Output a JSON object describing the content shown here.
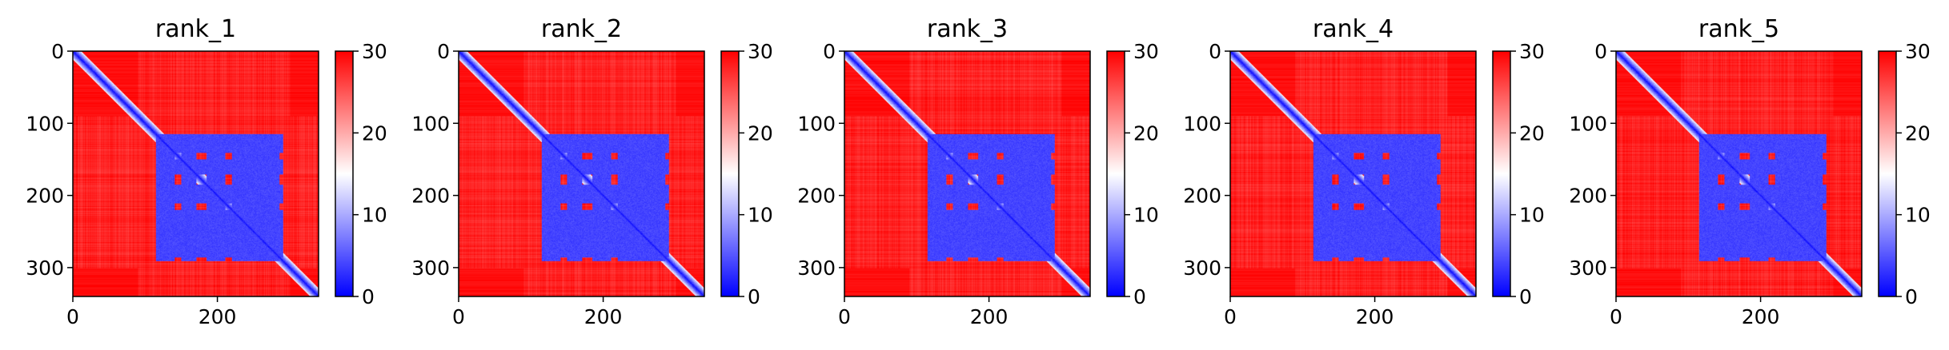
{
  "figure": {
    "colormap": {
      "name": "bwr",
      "low": "#0000ff",
      "mid": "#ffffff",
      "high": "#ff0000"
    }
  },
  "chart_data": [
    {
      "type": "heatmap",
      "title": "rank_1",
      "xlabel": "",
      "ylabel": "",
      "xlim": [
        0,
        340
      ],
      "ylim": [
        340,
        0
      ],
      "x_ticks": [
        0,
        200
      ],
      "y_ticks": [
        0,
        100,
        200,
        300
      ],
      "colorbar": {
        "range": [
          0,
          30
        ],
        "ticks": [
          0,
          10,
          20,
          30
        ]
      },
      "matrix_size": 340,
      "diagonal_value": 0,
      "background_value": 30,
      "domain_blocks": [
        {
          "rows": [
            115,
            140
          ],
          "cols": [
            115,
            290
          ],
          "value": 3
        },
        {
          "rows": [
            150,
            170
          ],
          "cols": [
            115,
            290
          ],
          "value": 3
        },
        {
          "rows": [
            185,
            210
          ],
          "cols": [
            115,
            290
          ],
          "value": 3
        },
        {
          "rows": [
            220,
            285
          ],
          "cols": [
            115,
            290
          ],
          "value": 3
        }
      ]
    },
    {
      "type": "heatmap",
      "title": "rank_2",
      "xlabel": "",
      "ylabel": "",
      "xlim": [
        0,
        340
      ],
      "ylim": [
        340,
        0
      ],
      "x_ticks": [
        0,
        200
      ],
      "y_ticks": [
        0,
        100,
        200,
        300
      ],
      "colorbar": {
        "range": [
          0,
          30
        ],
        "ticks": [
          0,
          10,
          20,
          30
        ]
      },
      "matrix_size": 340,
      "diagonal_value": 0,
      "background_value": 30,
      "domain_blocks": [
        {
          "rows": [
            115,
            140
          ],
          "cols": [
            115,
            290
          ],
          "value": 3
        },
        {
          "rows": [
            150,
            170
          ],
          "cols": [
            115,
            290
          ],
          "value": 3
        },
        {
          "rows": [
            185,
            210
          ],
          "cols": [
            115,
            290
          ],
          "value": 3
        },
        {
          "rows": [
            220,
            285
          ],
          "cols": [
            115,
            290
          ],
          "value": 3
        }
      ]
    },
    {
      "type": "heatmap",
      "title": "rank_3",
      "xlabel": "",
      "ylabel": "",
      "xlim": [
        0,
        340
      ],
      "ylim": [
        340,
        0
      ],
      "x_ticks": [
        0,
        200
      ],
      "y_ticks": [
        0,
        100,
        200,
        300
      ],
      "colorbar": {
        "range": [
          0,
          30
        ],
        "ticks": [
          0,
          10,
          20,
          30
        ]
      },
      "matrix_size": 340,
      "diagonal_value": 0,
      "background_value": 30,
      "domain_blocks": [
        {
          "rows": [
            115,
            140
          ],
          "cols": [
            115,
            290
          ],
          "value": 3
        },
        {
          "rows": [
            150,
            170
          ],
          "cols": [
            115,
            290
          ],
          "value": 3
        },
        {
          "rows": [
            185,
            210
          ],
          "cols": [
            115,
            290
          ],
          "value": 3
        },
        {
          "rows": [
            220,
            285
          ],
          "cols": [
            115,
            290
          ],
          "value": 3
        }
      ]
    },
    {
      "type": "heatmap",
      "title": "rank_4",
      "xlabel": "",
      "ylabel": "",
      "xlim": [
        0,
        340
      ],
      "ylim": [
        340,
        0
      ],
      "x_ticks": [
        0,
        200
      ],
      "y_ticks": [
        0,
        100,
        200,
        300
      ],
      "colorbar": {
        "range": [
          0,
          30
        ],
        "ticks": [
          0,
          10,
          20,
          30
        ]
      },
      "matrix_size": 340,
      "diagonal_value": 0,
      "background_value": 30,
      "domain_blocks": [
        {
          "rows": [
            115,
            140
          ],
          "cols": [
            115,
            290
          ],
          "value": 3
        },
        {
          "rows": [
            150,
            170
          ],
          "cols": [
            115,
            290
          ],
          "value": 3
        },
        {
          "rows": [
            185,
            210
          ],
          "cols": [
            115,
            290
          ],
          "value": 3
        },
        {
          "rows": [
            220,
            285
          ],
          "cols": [
            115,
            290
          ],
          "value": 3
        }
      ]
    },
    {
      "type": "heatmap",
      "title": "rank_5",
      "xlabel": "",
      "ylabel": "",
      "xlim": [
        0,
        340
      ],
      "ylim": [
        340,
        0
      ],
      "x_ticks": [
        0,
        200
      ],
      "y_ticks": [
        0,
        100,
        200,
        300
      ],
      "colorbar": {
        "range": [
          0,
          30
        ],
        "ticks": [
          0,
          10,
          20,
          30
        ]
      },
      "matrix_size": 340,
      "diagonal_value": 0,
      "background_value": 30,
      "domain_blocks": [
        {
          "rows": [
            115,
            140
          ],
          "cols": [
            115,
            290
          ],
          "value": 3
        },
        {
          "rows": [
            150,
            170
          ],
          "cols": [
            115,
            290
          ],
          "value": 3
        },
        {
          "rows": [
            185,
            210
          ],
          "cols": [
            115,
            290
          ],
          "value": 3
        },
        {
          "rows": [
            220,
            285
          ],
          "cols": [
            115,
            290
          ],
          "value": 3
        }
      ]
    }
  ]
}
